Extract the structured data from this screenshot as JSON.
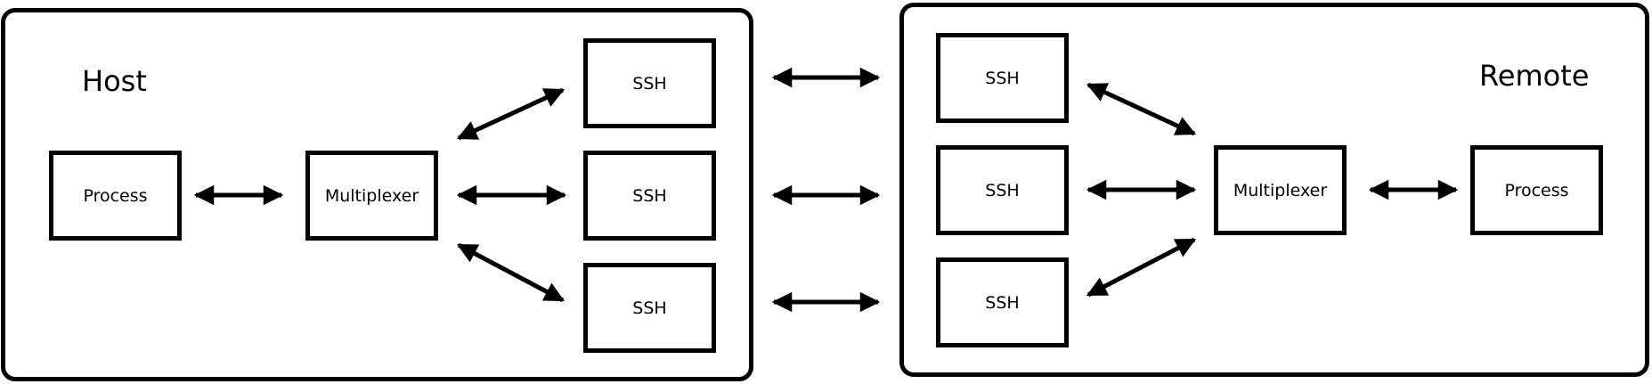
{
  "host": {
    "title": "Host",
    "process": "Process",
    "multiplexer": "Multiplexer",
    "ssh": [
      "SSH",
      "SSH",
      "SSH"
    ]
  },
  "remote": {
    "title": "Remote",
    "process": "Process",
    "multiplexer": "Multiplexer",
    "ssh": [
      "SSH",
      "SSH",
      "SSH"
    ]
  },
  "colors": {
    "line": "#000000",
    "background": "#ffffff"
  }
}
